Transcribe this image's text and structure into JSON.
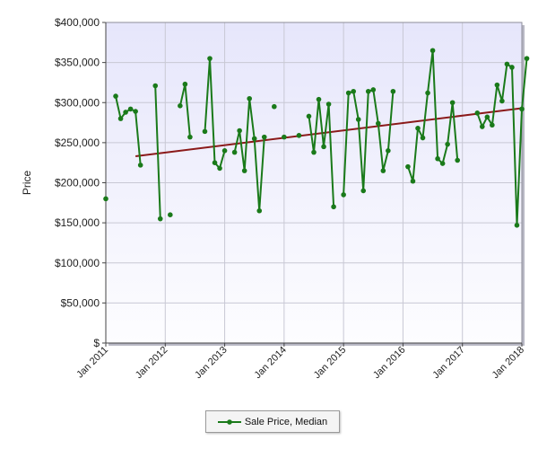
{
  "chart_data": {
    "type": "line",
    "title": "",
    "ylabel": "Price",
    "xlabel": "",
    "ylim": [
      0,
      400000
    ],
    "yticks": [
      0,
      50000,
      100000,
      150000,
      200000,
      250000,
      300000,
      350000,
      400000
    ],
    "ytick_labels": [
      "$",
      "$50,000",
      "$100,000",
      "$150,000",
      "$200,000",
      "$250,000",
      "$300,000",
      "$350,000",
      "$400,000"
    ],
    "xlim": [
      "2011-01",
      "2018-01"
    ],
    "xticks": [
      "2011-01",
      "2012-01",
      "2013-01",
      "2014-01",
      "2015-01",
      "2016-01",
      "2017-01",
      "2018-01"
    ],
    "xtick_labels": [
      "Jan 2011",
      "Jan 2012",
      "Jan 2013",
      "Jan 2014",
      "Jan 2015",
      "Jan 2016",
      "Jan 2017",
      "Jan 2018"
    ],
    "grid": true,
    "legend_position": "bottom",
    "series": [
      {
        "name": "Sale Price, Median",
        "color": "#1a7a1a",
        "points": [
          [
            "2011-01",
            180000
          ],
          [
            "2011-03",
            308000
          ],
          [
            "2011-04",
            280000
          ],
          [
            "2011-05",
            288000
          ],
          [
            "2011-06",
            292000
          ],
          [
            "2011-07",
            289000
          ],
          [
            "2011-08",
            222000
          ],
          [
            "2011-11",
            321000
          ],
          [
            "2011-12",
            155000
          ],
          [
            "2012-02",
            160000
          ],
          [
            "2012-04",
            296000
          ],
          [
            "2012-05",
            323000
          ],
          [
            "2012-06",
            257000
          ],
          [
            "2012-09",
            264000
          ],
          [
            "2012-10",
            355000
          ],
          [
            "2012-11",
            225000
          ],
          [
            "2012-12",
            218000
          ],
          [
            "2013-01",
            240000
          ],
          [
            "2013-03",
            238000
          ],
          [
            "2013-04",
            265000
          ],
          [
            "2013-05",
            215000
          ],
          [
            "2013-06",
            305000
          ],
          [
            "2013-07",
            255000
          ],
          [
            "2013-08",
            165000
          ],
          [
            "2013-09",
            257000
          ],
          [
            "2013-11",
            295000
          ],
          [
            "2014-01",
            257000
          ],
          [
            "2014-04",
            259000
          ],
          [
            "2014-06",
            283000
          ],
          [
            "2014-07",
            238000
          ],
          [
            "2014-08",
            304000
          ],
          [
            "2014-09",
            245000
          ],
          [
            "2014-10",
            298000
          ],
          [
            "2014-11",
            170000
          ],
          [
            "2015-01",
            185000
          ],
          [
            "2015-02",
            312000
          ],
          [
            "2015-03",
            314000
          ],
          [
            "2015-04",
            279000
          ],
          [
            "2015-05",
            190000
          ],
          [
            "2015-06",
            314000
          ],
          [
            "2015-07",
            316000
          ],
          [
            "2015-08",
            274000
          ],
          [
            "2015-09",
            215000
          ],
          [
            "2015-10",
            240000
          ],
          [
            "2015-11",
            314000
          ],
          [
            "2016-02",
            220000
          ],
          [
            "2016-03",
            202000
          ],
          [
            "2016-04",
            268000
          ],
          [
            "2016-05",
            256000
          ],
          [
            "2016-06",
            312000
          ],
          [
            "2016-07",
            365000
          ],
          [
            "2016-08",
            230000
          ],
          [
            "2016-09",
            224000
          ],
          [
            "2016-10",
            248000
          ],
          [
            "2016-11",
            300000
          ],
          [
            "2016-12",
            228000
          ],
          [
            "2017-04",
            287000
          ],
          [
            "2017-05",
            270000
          ],
          [
            "2017-06",
            282000
          ],
          [
            "2017-07",
            272000
          ],
          [
            "2017-08",
            322000
          ],
          [
            "2017-09",
            302000
          ],
          [
            "2017-10",
            348000
          ],
          [
            "2017-11",
            344000
          ],
          [
            "2017-12",
            147000
          ],
          [
            "2018-01",
            292000
          ],
          [
            "2018-02",
            355000
          ]
        ]
      }
    ],
    "trendline": {
      "color": "#8b1a1a",
      "start": [
        "2011-07",
        233000
      ],
      "end": [
        "2018-01",
        293000
      ]
    }
  }
}
